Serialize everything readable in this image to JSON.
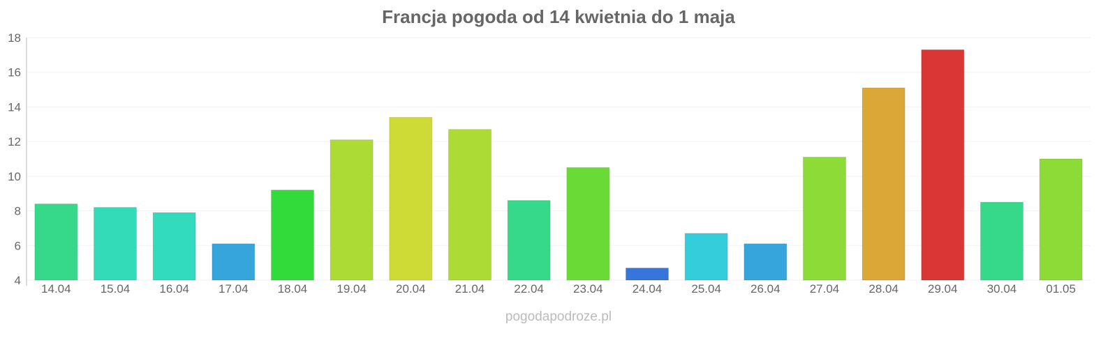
{
  "chart_data": {
    "type": "bar",
    "title": "Francja pogoda od 14 kwietnia do 1 maja",
    "xlabel": "",
    "ylabel": "",
    "ylim": [
      4,
      18
    ],
    "yticks": [
      4,
      6,
      8,
      10,
      12,
      14,
      16,
      18
    ],
    "grid": true,
    "categories": [
      "14.04",
      "15.04",
      "16.04",
      "17.04",
      "18.04",
      "19.04",
      "20.04",
      "21.04",
      "22.04",
      "23.04",
      "24.04",
      "25.04",
      "26.04",
      "27.04",
      "28.04",
      "29.04",
      "30.04",
      "01.05"
    ],
    "values": [
      8.4,
      8.2,
      7.9,
      6.1,
      9.2,
      12.1,
      13.4,
      12.7,
      8.6,
      10.5,
      4.7,
      6.7,
      6.1,
      11.1,
      15.1,
      17.3,
      8.5,
      11.0
    ],
    "colors": [
      "#36d98a",
      "#33dbb9",
      "#33dbbd",
      "#36a5db",
      "#33db3a",
      "#addb36",
      "#cedb36",
      "#addb36",
      "#36d98a",
      "#6adb36",
      "#3675db",
      "#33cddb",
      "#36a5db",
      "#8cdb36",
      "#dba736",
      "#db3636",
      "#36d98a",
      "#8cdb36"
    ]
  },
  "watermark": "pogodapodroze.pl"
}
